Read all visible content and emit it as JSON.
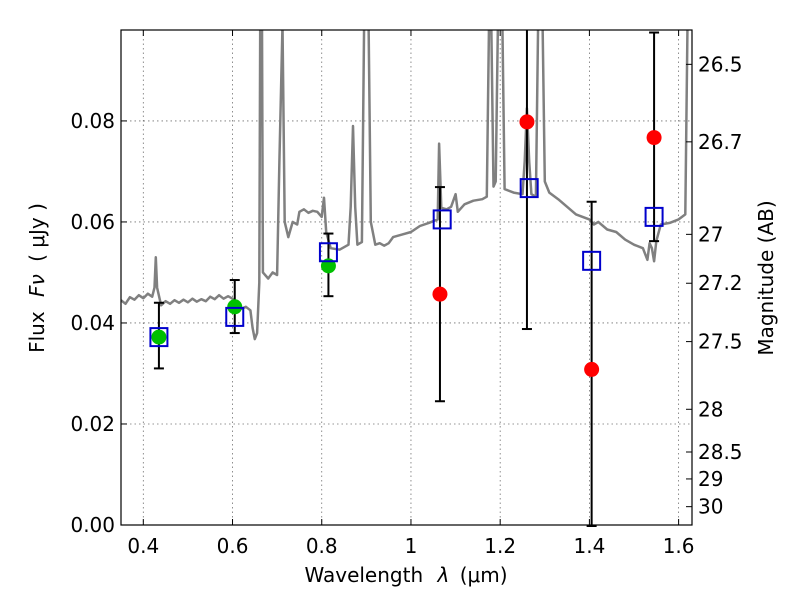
{
  "chart_data": {
    "type": "scatter",
    "xlabel_text": "Wavelength",
    "xlabel_symbol": "λ",
    "xlabel_unit": "(μm)",
    "ylabel_text": "Flux",
    "ylabel_symbol": "Fν",
    "ylabel_unit": "( μJy )",
    "ylabel_right": "Magnitude (AB)",
    "xlim": [
      0.35,
      1.63
    ],
    "ylim": [
      0.0,
      0.098
    ],
    "grid": true,
    "x_ticks": [
      {
        "value": 0.4,
        "label": "0.4"
      },
      {
        "value": 0.6,
        "label": "0.6"
      },
      {
        "value": 0.8,
        "label": "0.8"
      },
      {
        "value": 1.0,
        "label": "1"
      },
      {
        "value": 1.2,
        "label": "1.2"
      },
      {
        "value": 1.4,
        "label": "1.4"
      },
      {
        "value": 1.6,
        "label": "1.6"
      }
    ],
    "y_ticks": [
      {
        "value": 0.0,
        "label": "0.00"
      },
      {
        "value": 0.02,
        "label": "0.02"
      },
      {
        "value": 0.04,
        "label": "0.04"
      },
      {
        "value": 0.06,
        "label": "0.06"
      },
      {
        "value": 0.08,
        "label": "0.08"
      }
    ],
    "mag_ticks": [
      {
        "value": 26.5,
        "label": "26.5"
      },
      {
        "value": 26.7,
        "label": "26.7"
      },
      {
        "value": 27.0,
        "label": "27"
      },
      {
        "value": 27.2,
        "label": "27.2"
      },
      {
        "value": 27.5,
        "label": "27.5"
      },
      {
        "value": 28.0,
        "label": "28"
      },
      {
        "value": 28.5,
        "label": "28.5"
      },
      {
        "value": 29.0,
        "label": "29"
      },
      {
        "value": 30.0,
        "label": "30"
      }
    ],
    "series": [
      {
        "name": "model_spectrum",
        "color": "#808080",
        "points": [
          [
            0.35,
            0.0445
          ],
          [
            0.36,
            0.0438
          ],
          [
            0.37,
            0.0451
          ],
          [
            0.38,
            0.0446
          ],
          [
            0.39,
            0.0455
          ],
          [
            0.4,
            0.0449
          ],
          [
            0.41,
            0.0458
          ],
          [
            0.42,
            0.0452
          ],
          [
            0.425,
            0.047
          ],
          [
            0.428,
            0.053
          ],
          [
            0.431,
            0.047
          ],
          [
            0.44,
            0.0435
          ],
          [
            0.45,
            0.0443
          ],
          [
            0.46,
            0.0438
          ],
          [
            0.47,
            0.0445
          ],
          [
            0.48,
            0.044
          ],
          [
            0.49,
            0.0446
          ],
          [
            0.5,
            0.0441
          ],
          [
            0.51,
            0.0448
          ],
          [
            0.52,
            0.0442
          ],
          [
            0.53,
            0.0447
          ],
          [
            0.54,
            0.0443
          ],
          [
            0.55,
            0.0452
          ],
          [
            0.56,
            0.0447
          ],
          [
            0.57,
            0.0455
          ],
          [
            0.58,
            0.0448
          ],
          [
            0.59,
            0.0453
          ],
          [
            0.6,
            0.0448
          ],
          [
            0.61,
            0.0432
          ],
          [
            0.62,
            0.0428
          ],
          [
            0.63,
            0.0432
          ],
          [
            0.64,
            0.0425
          ],
          [
            0.645,
            0.039
          ],
          [
            0.65,
            0.0368
          ],
          [
            0.655,
            0.038
          ],
          [
            0.66,
            0.048
          ],
          [
            0.662,
            0.099
          ],
          [
            0.666,
            0.099
          ],
          [
            0.668,
            0.05
          ],
          [
            0.68,
            0.0488
          ],
          [
            0.69,
            0.05
          ],
          [
            0.7,
            0.0495
          ],
          [
            0.705,
            0.072
          ],
          [
            0.712,
            0.099
          ],
          [
            0.717,
            0.06
          ],
          [
            0.725,
            0.057
          ],
          [
            0.735,
            0.06
          ],
          [
            0.745,
            0.0595
          ],
          [
            0.75,
            0.062
          ],
          [
            0.76,
            0.0625
          ],
          [
            0.77,
            0.0618
          ],
          [
            0.78,
            0.0622
          ],
          [
            0.79,
            0.062
          ],
          [
            0.8,
            0.061
          ],
          [
            0.805,
            0.0648
          ],
          [
            0.81,
            0.058
          ],
          [
            0.82,
            0.0548
          ],
          [
            0.84,
            0.0545
          ],
          [
            0.86,
            0.0555
          ],
          [
            0.865,
            0.063
          ],
          [
            0.87,
            0.079
          ],
          [
            0.875,
            0.063
          ],
          [
            0.88,
            0.0555
          ],
          [
            0.89,
            0.056
          ],
          [
            0.895,
            0.099
          ],
          [
            0.905,
            0.099
          ],
          [
            0.91,
            0.06
          ],
          [
            0.92,
            0.0555
          ],
          [
            0.93,
            0.0558
          ],
          [
            0.94,
            0.0553
          ],
          [
            0.95,
            0.0558
          ],
          [
            0.96,
            0.057
          ],
          [
            0.98,
            0.0575
          ],
          [
            1.0,
            0.058
          ],
          [
            1.02,
            0.0592
          ],
          [
            1.04,
            0.0598
          ],
          [
            1.06,
            0.0605
          ],
          [
            1.063,
            0.0755
          ],
          [
            1.068,
            0.0628
          ],
          [
            1.08,
            0.0625
          ],
          [
            1.09,
            0.063
          ],
          [
            1.1,
            0.0655
          ],
          [
            1.105,
            0.062
          ],
          [
            1.12,
            0.0635
          ],
          [
            1.14,
            0.0642
          ],
          [
            1.16,
            0.0645
          ],
          [
            1.17,
            0.065
          ],
          [
            1.175,
            0.099
          ],
          [
            1.18,
            0.099
          ],
          [
            1.185,
            0.067
          ],
          [
            1.19,
            0.068
          ],
          [
            1.195,
            0.099
          ],
          [
            1.205,
            0.099
          ],
          [
            1.21,
            0.0665
          ],
          [
            1.23,
            0.0658
          ],
          [
            1.25,
            0.0655
          ],
          [
            1.255,
            0.072
          ],
          [
            1.26,
            0.0825
          ],
          [
            1.265,
            0.072
          ],
          [
            1.27,
            0.0655
          ],
          [
            1.28,
            0.065
          ],
          [
            1.285,
            0.099
          ],
          [
            1.295,
            0.099
          ],
          [
            1.3,
            0.068
          ],
          [
            1.31,
            0.0658
          ],
          [
            1.33,
            0.0645
          ],
          [
            1.35,
            0.063
          ],
          [
            1.37,
            0.0615
          ],
          [
            1.4,
            0.0605
          ],
          [
            1.41,
            0.0595
          ],
          [
            1.42,
            0.06
          ],
          [
            1.44,
            0.0585
          ],
          [
            1.46,
            0.058
          ],
          [
            1.48,
            0.0565
          ],
          [
            1.5,
            0.0555
          ],
          [
            1.52,
            0.0548
          ],
          [
            1.53,
            0.0525
          ],
          [
            1.535,
            0.0558
          ],
          [
            1.54,
            0.0548
          ],
          [
            1.545,
            0.0522
          ],
          [
            1.55,
            0.0562
          ],
          [
            1.56,
            0.0595
          ],
          [
            1.58,
            0.0598
          ],
          [
            1.6,
            0.0605
          ],
          [
            1.615,
            0.0615
          ],
          [
            1.62,
            0.099
          ]
        ]
      },
      {
        "name": "observed_green",
        "color": "#00c000",
        "points": [
          {
            "x": 0.435,
            "y": 0.0372,
            "err_lo": 0.0062,
            "err_hi": 0.0068
          },
          {
            "x": 0.605,
            "y": 0.0432,
            "err_lo": 0.0052,
            "err_hi": 0.0053
          },
          {
            "x": 0.815,
            "y": 0.0513,
            "err_lo": 0.006,
            "err_hi": 0.0064
          }
        ]
      },
      {
        "name": "observed_red",
        "color": "#ff0000",
        "points": [
          {
            "x": 1.065,
            "y": 0.0457,
            "err_lo": 0.0212,
            "err_hi": 0.0212
          },
          {
            "x": 1.26,
            "y": 0.0798,
            "err_lo": 0.041,
            "err_hi": 0.02
          },
          {
            "x": 1.405,
            "y": 0.0308,
            "err_lo": 0.031,
            "err_hi": 0.0332
          },
          {
            "x": 1.545,
            "y": 0.0767,
            "err_lo": 0.0205,
            "err_hi": 0.0208
          }
        ]
      },
      {
        "name": "model_photometry",
        "color": "#0000cc",
        "points": [
          {
            "x": 0.435,
            "y": 0.0372
          },
          {
            "x": 0.605,
            "y": 0.0412
          },
          {
            "x": 0.815,
            "y": 0.054
          },
          {
            "x": 1.07,
            "y": 0.0605
          },
          {
            "x": 1.265,
            "y": 0.0667
          },
          {
            "x": 1.405,
            "y": 0.0523
          },
          {
            "x": 1.545,
            "y": 0.061
          }
        ]
      }
    ]
  }
}
